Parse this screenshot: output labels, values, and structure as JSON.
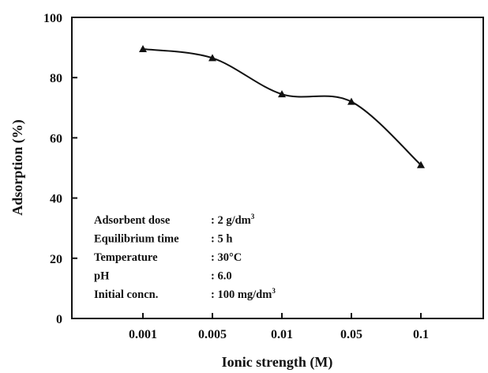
{
  "chart_data": {
    "type": "line",
    "categories": [
      "0.001",
      "0.005",
      "0.01",
      "0.05",
      "0.1"
    ],
    "series": [
      {
        "values": [
          89.5,
          86.5,
          74.5,
          72,
          51
        ]
      }
    ],
    "yticks": [
      "0",
      "20",
      "40",
      "60",
      "80",
      "100"
    ],
    "ylim": [
      0,
      100
    ],
    "xlabel": "Ionic strength (M)",
    "ylabel": "Adsorption (%)",
    "marker": "triangle",
    "grid": false,
    "annotations": [
      {
        "label": "Adsorbent dose",
        "value": ": 2 g/dm",
        "sup": "3"
      },
      {
        "label": "Equilibrium time",
        "value": ": 5 h",
        "sup": ""
      },
      {
        "label": "Temperature",
        "value": ": 30°C",
        "sup": ""
      },
      {
        "label": "pH",
        "value": ": 6.0",
        "sup": ""
      },
      {
        "label": "Initial concn.",
        "value": ": 100 mg/dm",
        "sup": "3"
      }
    ],
    "colors": {
      "line": "#111111",
      "marker": "#111111",
      "axis": "#111111"
    }
  }
}
